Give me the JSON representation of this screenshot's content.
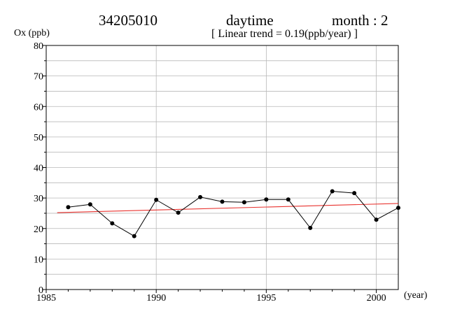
{
  "header": {
    "station": "34205010",
    "period": "daytime",
    "month": "month : 2",
    "trend": "[ Linear trend = 0.19(ppb/year) ]"
  },
  "chart_data": {
    "type": "line",
    "ylabel": "Ox (ppb)",
    "xlabel": "(year)",
    "xlim": [
      1985,
      2001
    ],
    "ylim": [
      0,
      80
    ],
    "x_ticks": [
      1985,
      1990,
      1995,
      2000
    ],
    "y_ticks": [
      0,
      10,
      20,
      30,
      40,
      50,
      60,
      70,
      80
    ],
    "grid": true,
    "series": [
      {
        "values_x": [
          1986,
          1987,
          1988,
          1989,
          1990,
          1991,
          1992,
          1993,
          1994,
          1995,
          1996,
          1997,
          1998,
          1999,
          2000,
          2001
        ],
        "values_y": [
          27.0,
          27.9,
          21.7,
          17.5,
          29.4,
          25.2,
          30.3,
          28.8,
          28.6,
          29.5,
          29.5,
          20.2,
          32.2,
          31.6,
          22.9,
          26.8
        ],
        "color": "#000000"
      }
    ],
    "trend_line": {
      "x": [
        1985.5,
        2001
      ],
      "y": [
        25.2,
        28.2
      ],
      "color": "#e8322e"
    }
  }
}
